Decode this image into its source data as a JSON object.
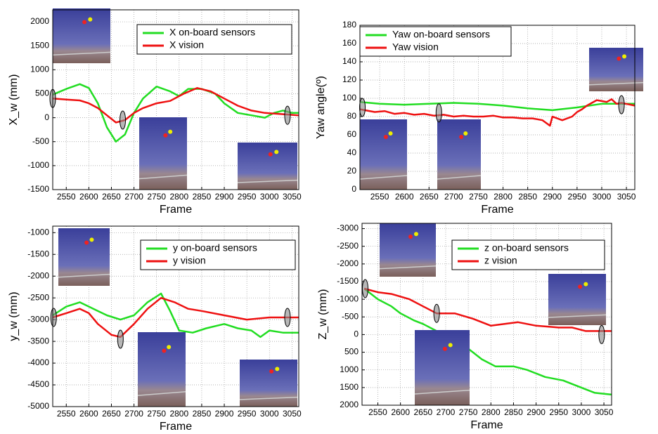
{
  "chart_data": [
    {
      "type": "line",
      "xlabel": "Frame",
      "ylabel": "X_w (mm)",
      "grid": true,
      "xlim": [
        2520,
        3065
      ],
      "ylim": [
        -1500,
        2250
      ],
      "xticks": [
        2550,
        2600,
        2650,
        2700,
        2750,
        2800,
        2850,
        2900,
        2950,
        3000,
        3050
      ],
      "yticks": [
        -1500,
        -1000,
        -500,
        0,
        500,
        1000,
        1500,
        2000
      ],
      "series": [
        {
          "name": "X on-board sensors",
          "color": "#22dd22",
          "x": [
            2520,
            2550,
            2580,
            2600,
            2620,
            2640,
            2660,
            2680,
            2700,
            2720,
            2750,
            2780,
            2800,
            2820,
            2850,
            2880,
            2900,
            2930,
            2960,
            2990,
            3010,
            3030,
            3050,
            3065
          ],
          "values": [
            480,
            600,
            700,
            620,
            300,
            -200,
            -500,
            -350,
            100,
            400,
            650,
            550,
            450,
            600,
            600,
            500,
            300,
            100,
            50,
            0,
            100,
            150,
            100,
            100
          ]
        },
        {
          "name": "X vision",
          "color": "#ee1111",
          "x": [
            2520,
            2550,
            2580,
            2600,
            2620,
            2640,
            2660,
            2680,
            2700,
            2720,
            2750,
            2780,
            2810,
            2840,
            2870,
            2900,
            2930,
            2960,
            2990,
            3020,
            3065
          ],
          "values": [
            400,
            380,
            360,
            300,
            200,
            50,
            -100,
            -50,
            100,
            200,
            300,
            350,
            500,
            620,
            550,
            400,
            250,
            150,
            100,
            80,
            50
          ]
        }
      ]
    },
    {
      "type": "line",
      "xlabel": "Frame",
      "ylabel": "Yaw angle(º)",
      "grid": true,
      "xlim": [
        2510,
        3067
      ],
      "ylim": [
        0,
        180
      ],
      "xticks": [
        2550,
        2600,
        2650,
        2700,
        2750,
        2800,
        2850,
        2900,
        2950,
        3000,
        3050
      ],
      "yticks": [
        0,
        20,
        40,
        60,
        80,
        100,
        120,
        140,
        160,
        180
      ],
      "series": [
        {
          "name": "Yaw on-board sensors",
          "color": "#22dd22",
          "x": [
            2510,
            2550,
            2600,
            2650,
            2700,
            2750,
            2800,
            2850,
            2900,
            2950,
            3000,
            3067
          ],
          "values": [
            96,
            94,
            93,
            94,
            95,
            94,
            92,
            89,
            87,
            90,
            94,
            94
          ]
        },
        {
          "name": "Yaw vision",
          "color": "#ee1111",
          "x": [
            2510,
            2540,
            2560,
            2580,
            2600,
            2620,
            2640,
            2660,
            2680,
            2700,
            2720,
            2740,
            2760,
            2780,
            2800,
            2820,
            2840,
            2860,
            2880,
            2895,
            2900,
            2920,
            2940,
            2950,
            2960,
            2970,
            2980,
            2990,
            3000,
            3010,
            3020,
            3030,
            3040,
            3067
          ],
          "values": [
            88,
            85,
            86,
            83,
            84,
            82,
            83,
            81,
            82,
            80,
            81,
            80,
            80,
            81,
            79,
            79,
            78,
            78,
            76,
            70,
            80,
            76,
            80,
            85,
            88,
            92,
            95,
            98,
            97,
            96,
            99,
            94,
            95,
            92
          ]
        }
      ]
    },
    {
      "type": "line",
      "xlabel": "Frame",
      "ylabel": "y_w (mm)",
      "grid": true,
      "xlim": [
        2520,
        3065
      ],
      "ylim": [
        -5000,
        -850
      ],
      "xticks": [
        2550,
        2600,
        2650,
        2700,
        2750,
        2800,
        2850,
        2900,
        2950,
        3000,
        3050
      ],
      "yticks": [
        -5000,
        -4500,
        -4000,
        -3500,
        -3000,
        -2500,
        -2000,
        -1500,
        -1000
      ],
      "series": [
        {
          "name": "y on-board sensors",
          "color": "#22dd22",
          "x": [
            2520,
            2550,
            2580,
            2610,
            2640,
            2670,
            2700,
            2730,
            2760,
            2780,
            2800,
            2830,
            2860,
            2900,
            2930,
            2960,
            2980,
            3000,
            3030,
            3065
          ],
          "values": [
            -2900,
            -2700,
            -2600,
            -2750,
            -2900,
            -3000,
            -2900,
            -2600,
            -2400,
            -2800,
            -3250,
            -3300,
            -3200,
            -3100,
            -3200,
            -3250,
            -3400,
            -3250,
            -3300,
            -3300
          ]
        },
        {
          "name": "y vision",
          "color": "#ee1111",
          "x": [
            2520,
            2550,
            2580,
            2600,
            2620,
            2650,
            2670,
            2700,
            2730,
            2760,
            2790,
            2820,
            2850,
            2900,
            2950,
            3000,
            3065
          ],
          "values": [
            -2950,
            -2850,
            -2750,
            -2850,
            -3100,
            -3350,
            -3400,
            -3100,
            -2750,
            -2500,
            -2600,
            -2750,
            -2800,
            -2900,
            -3000,
            -2950,
            -2950
          ]
        }
      ]
    },
    {
      "type": "line",
      "xlabel": "Frame",
      "ylabel": "Z_w (mm)",
      "grid": true,
      "xlim": [
        2515,
        3067
      ],
      "ylim": [
        2000,
        -3150
      ],
      "xticks": [
        2550,
        2600,
        2650,
        2700,
        2750,
        2800,
        2850,
        2900,
        2950,
        3000,
        3050
      ],
      "yticks": [
        -3000,
        -2500,
        -2000,
        -1500,
        -1000,
        -500,
        0,
        500,
        1000,
        1500,
        2000
      ],
      "series": [
        {
          "name": "z on-board sensors",
          "color": "#22dd22",
          "x": [
            2520,
            2550,
            2580,
            2600,
            2630,
            2650,
            2680,
            2720,
            2750,
            2780,
            2810,
            2850,
            2880,
            2920,
            2960,
            3000,
            3030,
            3067
          ],
          "values": [
            -1300,
            -1000,
            -800,
            -600,
            -400,
            -300,
            -100,
            100,
            400,
            700,
            900,
            900,
            1000,
            1200,
            1300,
            1500,
            1650,
            1700
          ]
        },
        {
          "name": "z vision",
          "color": "#ee1111",
          "x": [
            2520,
            2550,
            2580,
            2620,
            2650,
            2680,
            2720,
            2760,
            2800,
            2830,
            2860,
            2900,
            2950,
            2980,
            3010,
            3067
          ],
          "values": [
            -1300,
            -1200,
            -1150,
            -1000,
            -800,
            -600,
            -600,
            -450,
            -250,
            -300,
            -350,
            -250,
            -200,
            -200,
            -100,
            -100
          ]
        }
      ]
    }
  ]
}
